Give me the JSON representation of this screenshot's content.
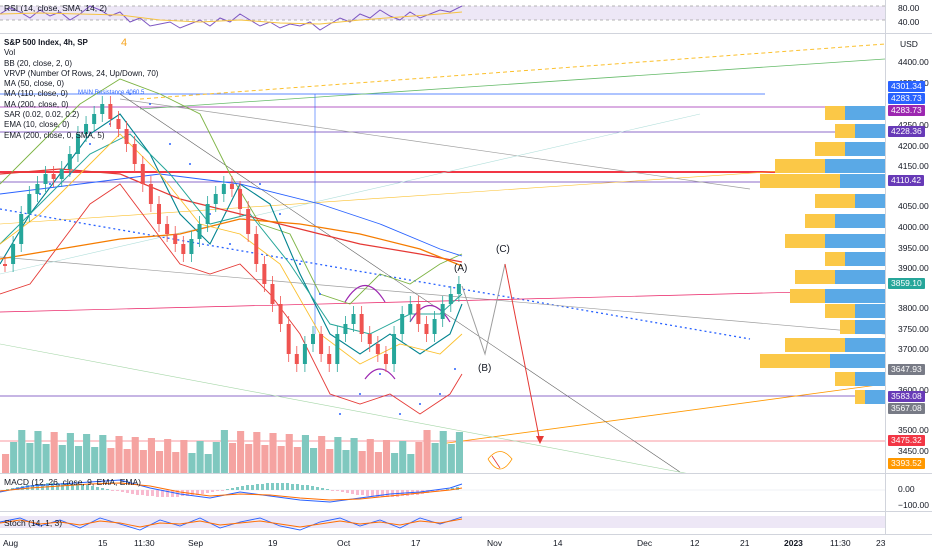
{
  "rsi_pane": {
    "label": "RSI (14, close, SMA, 14, 2)",
    "ticks": [
      "80.00",
      "40.00"
    ]
  },
  "main_pane": {
    "indicators": [
      "S&P 500 Index, 4h, SP",
      "Vol",
      "BB (20, close, 2, 0)",
      "VRVP (Number Of Rows, 24, Up/Down, 70)",
      "MA (50, close, 0)",
      "MA (110, close, 0)",
      "MA (200, close, 0)",
      "SAR (0.02, 0.02, 0.2)",
      "EMA (10, close, 0)",
      "EMA (200, close, 0, SMA, 5)"
    ],
    "currency": "USD",
    "ticks": [
      "4400.00",
      "4350.00",
      "4250.00",
      "4200.00",
      "4150.00",
      "4050.00",
      "4000.00",
      "3950.00",
      "3900.00",
      "3800.00",
      "3750.00",
      "3700.00",
      "3600.00",
      "3500.00",
      "3450.00"
    ],
    "price_tags": [
      {
        "text": "4301.34",
        "color": "#2962ff"
      },
      {
        "text": "4283.73",
        "color": "#2962ff"
      },
      {
        "text": "4283.73",
        "color": "#9c27b0"
      },
      {
        "text": "4228.36",
        "color": "#673ab7"
      },
      {
        "text": "4110.42",
        "color": "#673ab7"
      },
      {
        "text": "3859.10",
        "color": "#26a69a"
      },
      {
        "text": "3647.93",
        "color": "#787b86"
      },
      {
        "text": "3583.08",
        "color": "#673ab7"
      },
      {
        "text": "3567.08",
        "color": "#787b86"
      },
      {
        "text": "3475.32",
        "color": "#f23645"
      },
      {
        "text": "3393.52",
        "color": "#ff9800"
      }
    ],
    "annotations": {
      "main_resistance": "MAIN Resistance 4060.5",
      "wave4": "4",
      "waveA": "(A)",
      "waveB": "(B)",
      "waveC": "(C)"
    }
  },
  "macd_pane": {
    "label": "MACD (12, 26, close, 9, EMA, EMA)",
    "ticks": [
      "0.00",
      "−100.00"
    ]
  },
  "stoch_pane": {
    "label": "Stoch (14, 1, 3)"
  },
  "time_axis": {
    "labels": [
      {
        "text": "Aug",
        "bold": false
      },
      {
        "text": "15",
        "bold": false
      },
      {
        "text": "11:30",
        "bold": false
      },
      {
        "text": "Sep",
        "bold": false
      },
      {
        "text": "19",
        "bold": false
      },
      {
        "text": "Oct",
        "bold": false
      },
      {
        "text": "17",
        "bold": false
      },
      {
        "text": "Nov",
        "bold": false
      },
      {
        "text": "14",
        "bold": false
      },
      {
        "text": "Dec",
        "bold": false
      },
      {
        "text": "12",
        "bold": false
      },
      {
        "text": "21",
        "bold": false
      },
      {
        "text": "2023",
        "bold": true
      },
      {
        "text": "11:30",
        "bold": false
      },
      {
        "text": "23",
        "bold": false
      }
    ]
  },
  "colors": {
    "up": "#26a69a",
    "down": "#ef5350",
    "vol_up": "#7fc8bf",
    "vol_down": "#f5a3a1",
    "bb": "#2ca3a3",
    "ma50": "#e53935",
    "ma200": "#f57c00",
    "trend_blue": "#2962ff",
    "vrvp_up": "#5aa9e6",
    "vrvp_down": "#fbc847"
  }
}
